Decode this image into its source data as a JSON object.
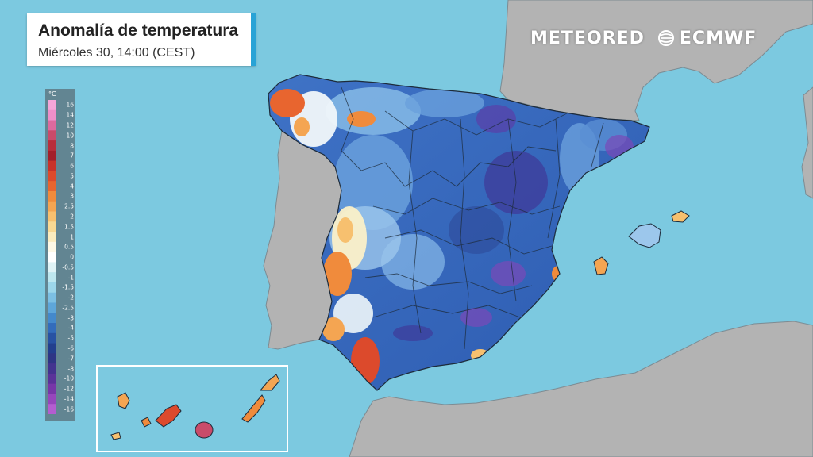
{
  "title": {
    "main": "Anomalía de temperatura",
    "sub": "Miércoles 30, 14:00 (CEST)"
  },
  "logos": {
    "meteored": "METEORED",
    "ecmwf": "ECMWF"
  },
  "legend": {
    "unit": "°C",
    "labels": [
      "16",
      "14",
      "12",
      "10",
      "8",
      "7",
      "6",
      "5",
      "4",
      "3",
      "2.5",
      "2",
      "1.5",
      "1",
      "0.5",
      "0",
      "-0.5",
      "-1",
      "-1.5",
      "-2",
      "-2.5",
      "-3",
      "-4",
      "-5",
      "-6",
      "-7",
      "-8",
      "-10",
      "-12",
      "-14",
      "-16"
    ],
    "colors": [
      "#f4a6d8",
      "#ee8fc9",
      "#dd6a9e",
      "#c94b6a",
      "#b82e3b",
      "#a31f2a",
      "#c8322a",
      "#dc4a2c",
      "#e8652f",
      "#f08b3c",
      "#f4a552",
      "#f7c06f",
      "#f9d993",
      "#fbecbe",
      "#fdf8e6",
      "#ffffff",
      "#dff3f6",
      "#bde7ef",
      "#9cd6ea",
      "#7cbfe3",
      "#5ea6da",
      "#4489cc",
      "#336cbb",
      "#2852a3",
      "#233f8e",
      "#2e3585",
      "#43338f",
      "#5a3399",
      "#7737a8",
      "#9646bc",
      "#b45dd0"
    ]
  },
  "colors": {
    "sea": "#7cc9e0",
    "land_other": "#b3b3b3",
    "frame": "#29a3d6"
  }
}
